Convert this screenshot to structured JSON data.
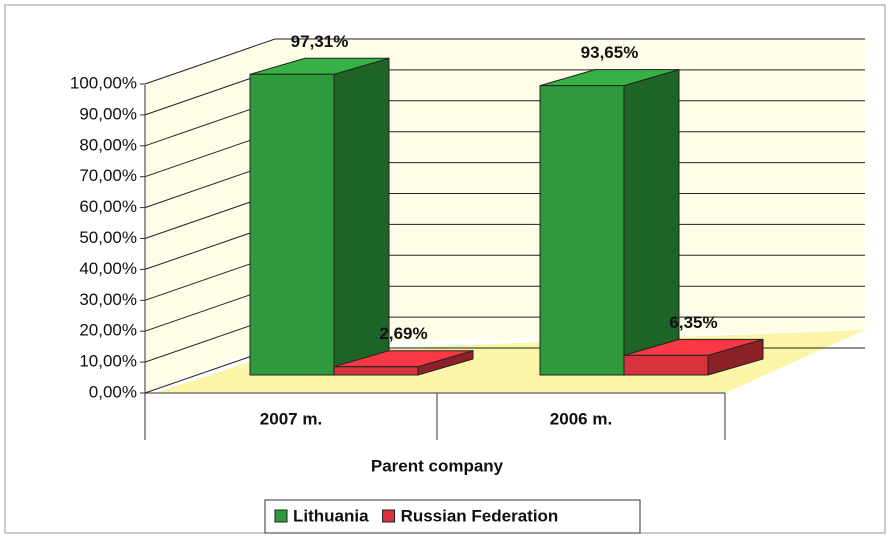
{
  "chart_data": {
    "type": "bar3d",
    "categories": [
      "2007 m.",
      "2006 m."
    ],
    "x_label": "Parent company",
    "series": [
      {
        "name": "Lithuania",
        "color": "#2f9a3c",
        "values": [
          97.31,
          93.65
        ],
        "value_labels": [
          "97,31%",
          "93,65%"
        ]
      },
      {
        "name": "Russian Federation",
        "color": "#d8323c",
        "values": [
          2.69,
          6.35
        ],
        "value_labels": [
          "2,69%",
          "6,35%"
        ]
      }
    ],
    "ylim": [
      0,
      100
    ],
    "yticks": [
      {
        "value": 0,
        "label": "0,00%"
      },
      {
        "value": 10,
        "label": "10,00%"
      },
      {
        "value": 20,
        "label": "20,00%"
      },
      {
        "value": 30,
        "label": "30,00%"
      },
      {
        "value": 40,
        "label": "40,00%"
      },
      {
        "value": 50,
        "label": "50,00%"
      },
      {
        "value": 60,
        "label": "60,00%"
      },
      {
        "value": 70,
        "label": "70,00%"
      },
      {
        "value": 80,
        "label": "80,00%"
      },
      {
        "value": 90,
        "label": "90,00%"
      },
      {
        "value": 100,
        "label": "100,00%"
      }
    ],
    "grid": true,
    "legend": "bottom"
  }
}
